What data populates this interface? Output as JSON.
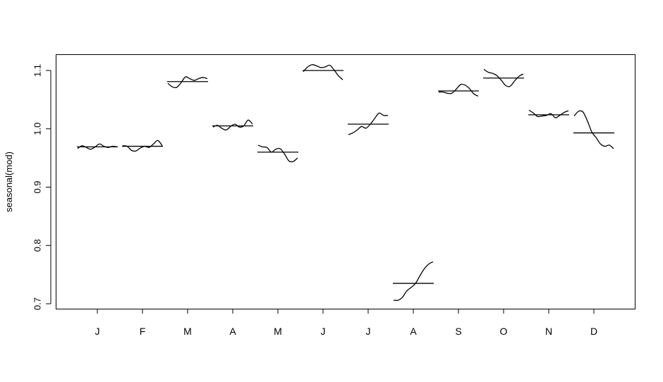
{
  "chart_data": {
    "type": "line",
    "title": "",
    "xlabel": "",
    "ylabel": "seasonal(mod)",
    "ylim": [
      0.7,
      1.1
    ],
    "y_ticks": [
      "0.7",
      "0.8",
      "0.9",
      "1.0",
      "1.1"
    ],
    "categories": [
      "J",
      "F",
      "M",
      "A",
      "M",
      "J",
      "J",
      "A",
      "S",
      "O",
      "N",
      "D"
    ],
    "grid": false,
    "legend": "none",
    "subseries": [
      {
        "month": "J",
        "mean": 0.969,
        "values": [
          0.966,
          0.971,
          0.968,
          0.965,
          0.969,
          0.974,
          0.97,
          0.968,
          0.97,
          0.969
        ]
      },
      {
        "month": "F",
        "mean": 0.97,
        "values": [
          0.971,
          0.97,
          0.963,
          0.962,
          0.967,
          0.97,
          0.968,
          0.974,
          0.98,
          0.971
        ]
      },
      {
        "month": "M",
        "mean": 1.081,
        "values": [
          1.078,
          1.072,
          1.071,
          1.079,
          1.089,
          1.086,
          1.083,
          1.086,
          1.088,
          1.086
        ]
      },
      {
        "month": "A",
        "mean": 1.005,
        "values": [
          1.003,
          1.006,
          1.001,
          0.998,
          1.004,
          1.008,
          1.003,
          1.005,
          1.015,
          1.008
        ]
      },
      {
        "month": "M",
        "mean": 0.96,
        "values": [
          0.972,
          0.969,
          0.968,
          0.96,
          0.965,
          0.966,
          0.957,
          0.945,
          0.944,
          0.95
        ]
      },
      {
        "month": "J",
        "mean": 1.1,
        "values": [
          1.098,
          1.106,
          1.11,
          1.108,
          1.105,
          1.106,
          1.109,
          1.101,
          1.091,
          1.084
        ]
      },
      {
        "month": "J",
        "mean": 1.008,
        "values": [
          0.99,
          0.993,
          0.998,
          1.004,
          1.001,
          1.008,
          1.018,
          1.027,
          1.023,
          1.023
        ]
      },
      {
        "month": "A",
        "mean": 0.735,
        "values": [
          0.706,
          0.706,
          0.711,
          0.722,
          0.728,
          0.735,
          0.748,
          0.76,
          0.768,
          0.772
        ]
      },
      {
        "month": "S",
        "mean": 1.065,
        "values": [
          1.063,
          1.063,
          1.061,
          1.061,
          1.068,
          1.076,
          1.075,
          1.069,
          1.06,
          1.056
        ]
      },
      {
        "month": "O",
        "mean": 1.087,
        "values": [
          1.102,
          1.097,
          1.095,
          1.091,
          1.083,
          1.074,
          1.073,
          1.082,
          1.09,
          1.094
        ]
      },
      {
        "month": "N",
        "mean": 1.024,
        "values": [
          1.032,
          1.027,
          1.021,
          1.022,
          1.023,
          1.026,
          1.019,
          1.023,
          1.028,
          1.031
        ]
      },
      {
        "month": "D",
        "mean": 0.993,
        "values": [
          1.022,
          1.03,
          1.029,
          1.014,
          0.995,
          0.985,
          0.974,
          0.97,
          0.972,
          0.966
        ]
      }
    ]
  }
}
